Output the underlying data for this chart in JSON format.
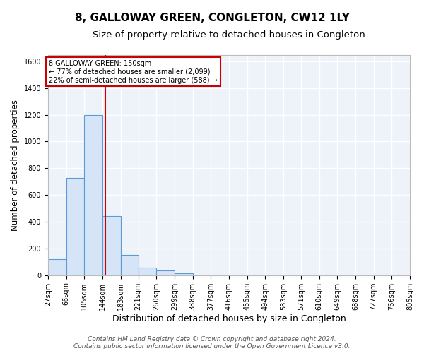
{
  "title": "8, GALLOWAY GREEN, CONGLETON, CW12 1LY",
  "subtitle": "Size of property relative to detached houses in Congleton",
  "xlabel": "Distribution of detached houses by size in Congleton",
  "ylabel": "Number of detached properties",
  "bin_edges": [
    27,
    66,
    105,
    144,
    183,
    221,
    260,
    299,
    338,
    377,
    416,
    455,
    494,
    533,
    571,
    610,
    649,
    688,
    727,
    766,
    805
  ],
  "bin_counts": [
    120,
    730,
    1200,
    440,
    150,
    57,
    33,
    14,
    0,
    0,
    0,
    0,
    0,
    0,
    0,
    0,
    0,
    0,
    0,
    0
  ],
  "bar_color": "#d6e4f7",
  "bar_edge_color": "#5b9bd5",
  "property_size": 150,
  "red_line_color": "#cc0000",
  "annotation_text": "8 GALLOWAY GREEN: 150sqm\n← 77% of detached houses are smaller (2,099)\n22% of semi-detached houses are larger (588) →",
  "annotation_box_color": "white",
  "annotation_box_edge": "#cc0000",
  "footer_line1": "Contains HM Land Registry data © Crown copyright and database right 2024.",
  "footer_line2": "Contains public sector information licensed under the Open Government Licence v3.0.",
  "ylim": [
    0,
    1650
  ],
  "background_color": "#eef2f9",
  "grid_color": "white",
  "title_fontsize": 11,
  "subtitle_fontsize": 9.5,
  "xlabel_fontsize": 9,
  "ylabel_fontsize": 8.5,
  "tick_fontsize": 7,
  "annotation_fontsize": 7,
  "footer_fontsize": 6.5
}
